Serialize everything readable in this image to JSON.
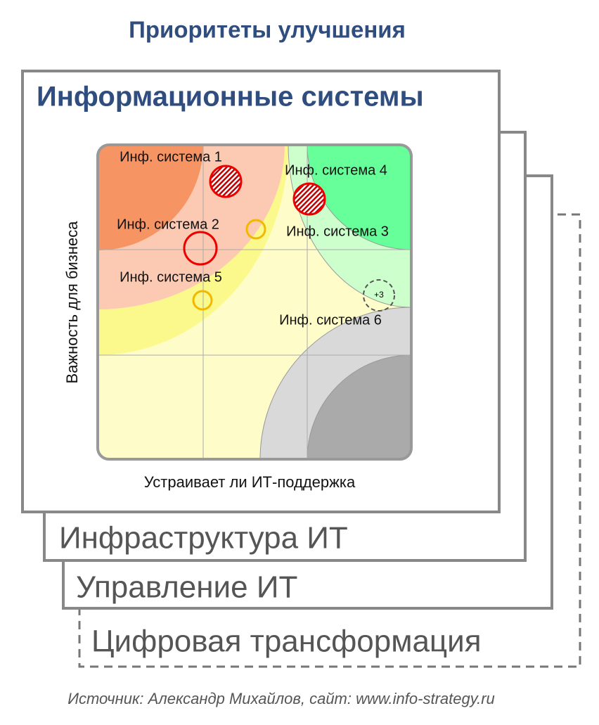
{
  "header": {
    "title": "Приоритеты улучшения"
  },
  "cards": [
    {
      "label": "Цифровая трансформация"
    },
    {
      "label": "Управление ИТ"
    },
    {
      "label": "Инфраструктура ИТ"
    },
    {
      "label": "Информационные системы"
    }
  ],
  "matrix": {
    "y_axis": "Важность  для бизнеса",
    "x_axis": "Устраивает ли ИТ-поддержка",
    "items": [
      {
        "label": "Инф. система 1"
      },
      {
        "label": "Инф. система 4"
      },
      {
        "label": "Инф. система 2"
      },
      {
        "label": "Инф. система 3"
      },
      {
        "label": "Инф. система 5"
      },
      {
        "label": "Инф. система 6"
      }
    ],
    "more": "+3"
  },
  "footer": {
    "source": "Источник: Александр Михайлов, сайт: www.info-strategy.ru"
  }
}
